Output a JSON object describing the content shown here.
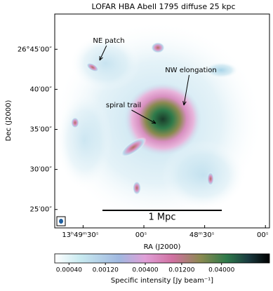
{
  "chart_data": {
    "type": "image",
    "title": "LOFAR HBA Abell 1795 diffuse 25 kpc",
    "xlabel": "RA (J2000)",
    "ylabel": "Dec (J2000)",
    "xlim": [
      104,
      -2
    ],
    "xticks": [
      {
        "value": 90,
        "label": "13ʰ49ᵐ30ˢ"
      },
      {
        "value": 60,
        "label": "00ˢ"
      },
      {
        "value": 30,
        "label": "48ᵐ30ˢ"
      },
      {
        "value": 0,
        "label": "00ˢ"
      }
    ],
    "ylim": [
      22.7,
      49.4
    ],
    "yticks": [
      {
        "value": 45,
        "label": "26°45′00″"
      },
      {
        "value": 40,
        "label": "40′00″"
      },
      {
        "value": 35,
        "label": "35′00″"
      },
      {
        "value": 30,
        "label": "30′00″"
      },
      {
        "value": 25,
        "label": "25′00″"
      }
    ],
    "annotations": [
      "NE patch",
      "NW elongation",
      "spiral trail"
    ],
    "scalebar": "1 Mpc",
    "colorbar": {
      "label": "Specific intensity [Jy beam⁻¹]",
      "log": true,
      "lim": [
        0.00026,
        0.17
      ],
      "ticks": [
        {
          "value": 0.0004,
          "label": "0.00040"
        },
        {
          "value": 0.0012,
          "label": "0.00120"
        },
        {
          "value": 0.004,
          "label": "0.00400"
        },
        {
          "value": 0.012,
          "label": "0.01200"
        },
        {
          "value": 0.04,
          "label": "0.04000"
        }
      ]
    }
  }
}
